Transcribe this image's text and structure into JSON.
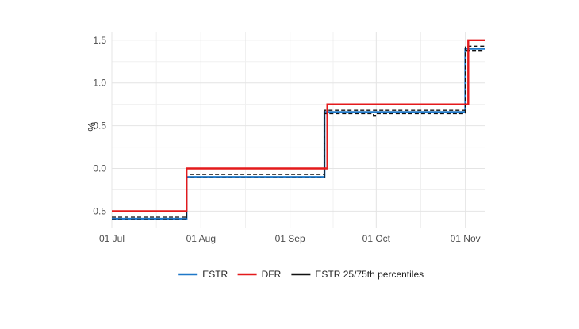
{
  "chart_data": {
    "type": "line",
    "ylabel": "%",
    "xlabel": "",
    "title": "",
    "x_ticks": [
      {
        "date": "2022-07-01",
        "label": "01 Jul"
      },
      {
        "date": "2022-08-01",
        "label": "01 Aug"
      },
      {
        "date": "2022-09-01",
        "label": "01 Sep"
      },
      {
        "date": "2022-10-01",
        "label": "01 Oct"
      },
      {
        "date": "2022-11-01",
        "label": "01 Nov"
      }
    ],
    "y_ticks": [
      {
        "value": -0.5,
        "label": "-0.5"
      },
      {
        "value": 0.0,
        "label": "0.0"
      },
      {
        "value": 0.5,
        "label": "0.5"
      },
      {
        "value": 1.0,
        "label": "1.0"
      },
      {
        "value": 1.5,
        "label": "1.5"
      }
    ],
    "xlim": [
      "2022-07-01",
      "2022-11-08"
    ],
    "ylim": [
      -0.7,
      1.6
    ],
    "grid": true,
    "legend_position": "bottom",
    "series": [
      {
        "name": "ESTR",
        "color": "#1f78c8",
        "style": "solid",
        "points": [
          {
            "x": "2022-07-01",
            "y": -0.59
          },
          {
            "x": "2022-07-27",
            "y": -0.59
          },
          {
            "x": "2022-07-27",
            "y": -0.1
          },
          {
            "x": "2022-09-13",
            "y": -0.1
          },
          {
            "x": "2022-09-13",
            "y": 0.66
          },
          {
            "x": "2022-11-01",
            "y": 0.66
          },
          {
            "x": "2022-11-01",
            "y": 1.4
          },
          {
            "x": "2022-11-08",
            "y": 1.4
          }
        ]
      },
      {
        "name": "DFR",
        "color": "#e41a1c",
        "style": "solid",
        "points": [
          {
            "x": "2022-07-01",
            "y": -0.5
          },
          {
            "x": "2022-07-27",
            "y": -0.5
          },
          {
            "x": "2022-07-27",
            "y": 0.0
          },
          {
            "x": "2022-09-14",
            "y": 0.0
          },
          {
            "x": "2022-09-14",
            "y": 0.75
          },
          {
            "x": "2022-11-02",
            "y": 0.75
          },
          {
            "x": "2022-11-02",
            "y": 1.5
          },
          {
            "x": "2022-11-08",
            "y": 1.5
          }
        ]
      },
      {
        "name": "ESTR 25/75th percentiles",
        "color": "#111111",
        "style": "dashed",
        "lines": [
          [
            {
              "x": "2022-07-01",
              "y": -0.57
            },
            {
              "x": "2022-07-27",
              "y": -0.57
            },
            {
              "x": "2022-07-27",
              "y": -0.07
            },
            {
              "x": "2022-09-13",
              "y": -0.07
            },
            {
              "x": "2022-09-13",
              "y": 0.68
            },
            {
              "x": "2022-11-01",
              "y": 0.68
            },
            {
              "x": "2022-11-01",
              "y": 1.43
            },
            {
              "x": "2022-11-08",
              "y": 1.43
            }
          ],
          [
            {
              "x": "2022-07-01",
              "y": -0.6
            },
            {
              "x": "2022-07-27",
              "y": -0.6
            },
            {
              "x": "2022-07-27",
              "y": -0.11
            },
            {
              "x": "2022-09-13",
              "y": -0.11
            },
            {
              "x": "2022-09-13",
              "y": 0.64
            },
            {
              "x": "2022-09-30",
              "y": 0.64
            },
            {
              "x": "2022-09-30",
              "y": 0.62
            },
            {
              "x": "2022-10-01",
              "y": 0.62
            },
            {
              "x": "2022-10-01",
              "y": 0.64
            },
            {
              "x": "2022-11-01",
              "y": 0.64
            },
            {
              "x": "2022-11-01",
              "y": 1.38
            },
            {
              "x": "2022-11-08",
              "y": 1.38
            }
          ]
        ]
      }
    ]
  }
}
